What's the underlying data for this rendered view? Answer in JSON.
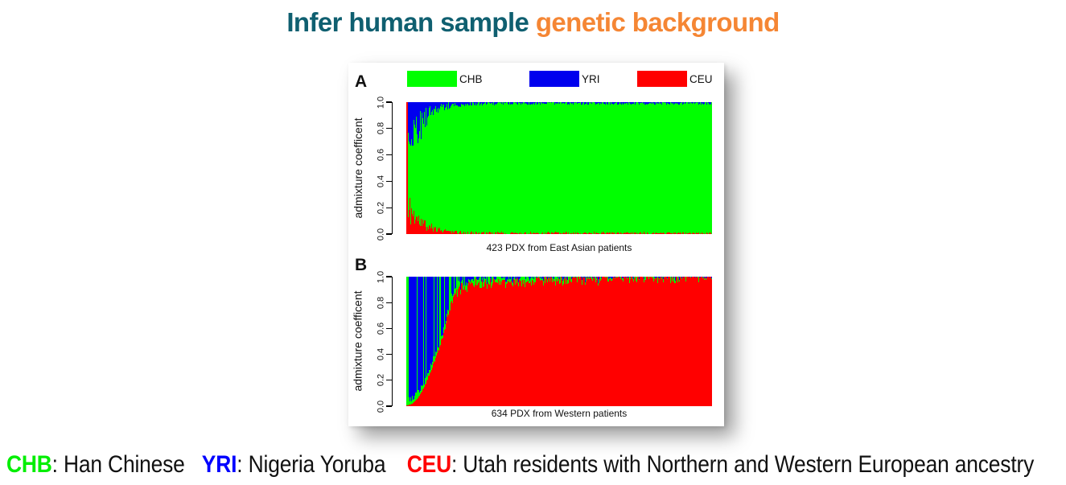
{
  "title": {
    "part1": "Infer human sample ",
    "part2": "genetic background",
    "color1": "#0f5f70",
    "color2": "#f58634"
  },
  "legend": {
    "lefts": [
      73,
      225,
      359
    ],
    "items": [
      {
        "label": "CHB",
        "color": "#00ff00"
      },
      {
        "label": "YRI",
        "color": "#0000ee"
      },
      {
        "label": "CEU",
        "color": "#ff0000"
      }
    ]
  },
  "footer": {
    "segments": [
      {
        "text": "CHB",
        "color": "#00ee00",
        "bold": true,
        "gap": 0
      },
      {
        "text": ": Han Chinese",
        "color": "#111111",
        "bold": false,
        "gap": 0
      },
      {
        "text": "YRI",
        "color": "#0000ff",
        "bold": true,
        "gap": 24
      },
      {
        "text": ": Nigeria Yoruba",
        "color": "#111111",
        "bold": false,
        "gap": 0
      },
      {
        "text": "CEU",
        "color": "#ff0000",
        "bold": true,
        "gap": 30
      },
      {
        "text": ": Utah residents with Northern and Western European ancestry",
        "color": "#111111",
        "bold": false,
        "gap": 0
      }
    ]
  },
  "chart_data": [
    {
      "id": "A",
      "type": "bar",
      "subtype": "stacked-admixture",
      "panel_label": "A",
      "n_samples": 423,
      "xlabel": "423 PDX from East Asian patients",
      "ylabel": "admixture coefficent",
      "ylim": [
        0,
        1
      ],
      "yticks": [
        0.0,
        0.2,
        0.4,
        0.6,
        0.8,
        1.0
      ],
      "grid": false,
      "legend_position": "top",
      "colors": {
        "CHB": "#00ff00",
        "YRI": "#0000ee",
        "CEU": "#ff0000"
      },
      "dominant_population": "CHB",
      "seed": 11,
      "profiles": {
        "note": "fractions vs sample rank percentile; CEU stacked from bottom, YRI from top, CHB fills remainder; first sample is 100% CEU",
        "red_bottom": [
          [
            0,
            1.0
          ],
          [
            0.004,
            0.1
          ],
          [
            0.01,
            0.17
          ],
          [
            0.02,
            0.14
          ],
          [
            0.04,
            0.09
          ],
          [
            0.07,
            0.05
          ],
          [
            0.1,
            0.03
          ],
          [
            0.14,
            0.018
          ],
          [
            0.2,
            0.012
          ],
          [
            0.35,
            0.009
          ],
          [
            1,
            0.008
          ]
        ],
        "blue_top": [
          [
            0,
            0.0
          ],
          [
            0.004,
            0.18
          ],
          [
            0.012,
            0.28
          ],
          [
            0.025,
            0.22
          ],
          [
            0.05,
            0.14
          ],
          [
            0.08,
            0.07
          ],
          [
            0.11,
            0.04
          ],
          [
            0.15,
            0.02
          ],
          [
            0.25,
            0.012
          ],
          [
            0.5,
            0.01
          ],
          [
            1,
            0.009
          ]
        ]
      }
    },
    {
      "id": "B",
      "type": "bar",
      "subtype": "stacked-admixture",
      "panel_label": "B",
      "n_samples": 634,
      "xlabel": "634 PDX from Western patients",
      "ylabel": "admixture coefficent",
      "ylim": [
        0,
        1
      ],
      "yticks": [
        0.0,
        0.2,
        0.4,
        0.6,
        0.8,
        1.0
      ],
      "grid": false,
      "legend_position": "top",
      "colors": {
        "CHB": "#00ff00",
        "YRI": "#0000ee",
        "CEU": "#ff0000"
      },
      "dominant_population": "CEU",
      "seed": 23,
      "left_mix_until": 0.17,
      "profiles": {
        "note": "CEU fraction rises sigmoidally; remainder above CEU is YRI/CHB striped mix on the left, thin CHB/YRI fringe on the right",
        "red_bottom": [
          [
            0,
            0.005
          ],
          [
            0.02,
            0.02
          ],
          [
            0.04,
            0.07
          ],
          [
            0.06,
            0.16
          ],
          [
            0.08,
            0.28
          ],
          [
            0.1,
            0.4
          ],
          [
            0.12,
            0.55
          ],
          [
            0.135,
            0.7
          ],
          [
            0.15,
            0.82
          ],
          [
            0.165,
            0.88
          ],
          [
            0.19,
            0.915
          ],
          [
            0.23,
            0.935
          ],
          [
            0.3,
            0.95
          ],
          [
            0.45,
            0.965
          ],
          [
            0.6,
            0.972
          ],
          [
            0.75,
            0.98
          ],
          [
            0.9,
            0.988
          ],
          [
            1,
            0.995
          ]
        ]
      }
    }
  ]
}
